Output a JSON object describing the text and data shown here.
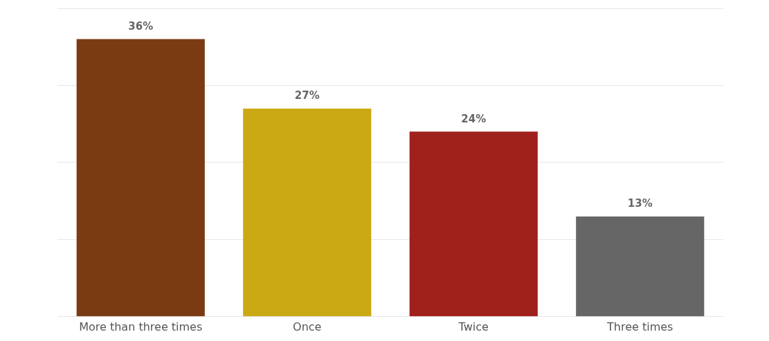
{
  "chart_data": {
    "type": "bar",
    "categories": [
      "More than three times",
      "Once",
      "Twice",
      "Three times"
    ],
    "values": [
      36,
      27,
      24,
      13
    ],
    "colors": [
      "#7a3b13",
      "#cba914",
      "#a0211c",
      "#666666"
    ],
    "value_labels": [
      "36%",
      "27%",
      "24%",
      "13%"
    ],
    "ylim": [
      0,
      40
    ],
    "yticks": [
      0,
      {
        "value": 10,
        "label": null
      },
      {
        "value": 20,
        "label": null
      },
      {
        "value": 30,
        "label": null
      },
      {
        "value": 40,
        "label": null
      }
    ],
    "grid": "y",
    "tick_labels": "x"
  }
}
